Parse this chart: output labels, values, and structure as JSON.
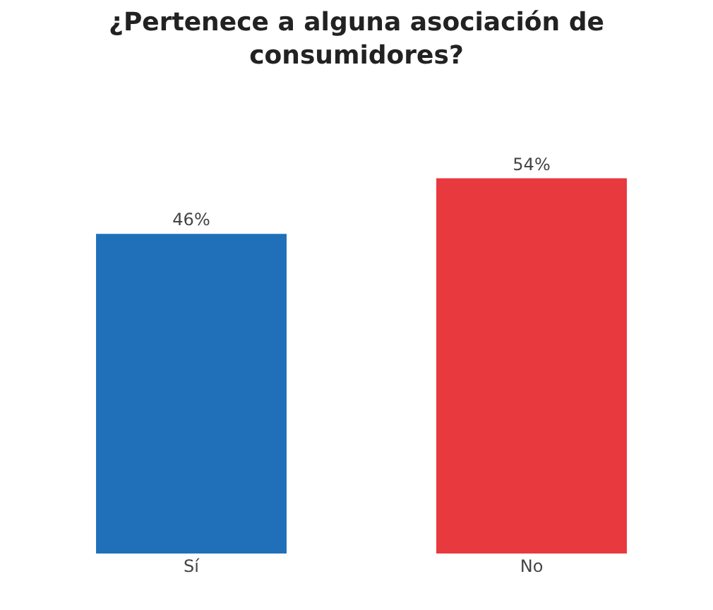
{
  "chart_data": {
    "type": "bar",
    "title": "¿Pertenece a alguna asociación de consumidores?",
    "categories": [
      "Sí",
      "No"
    ],
    "values": [
      46,
      54
    ],
    "colors": [
      "#1f70b8",
      "#e8393f"
    ],
    "value_labels": [
      "46%",
      "54%"
    ]
  }
}
